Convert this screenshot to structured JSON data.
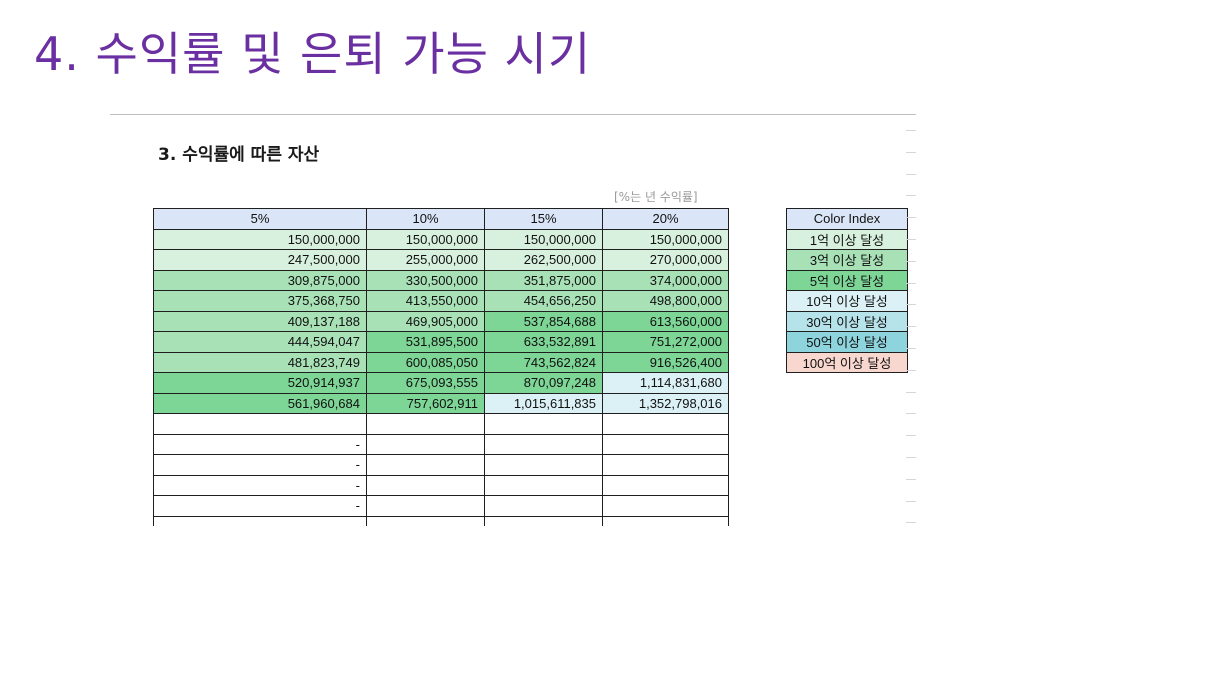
{
  "slide": {
    "title": "4. 수익률 및 은퇴 가능 시기"
  },
  "section": {
    "heading": "3. 수익률에 따른 자산",
    "rate_note": "[%는 년 수익률]"
  },
  "colors": {
    "title": "#6a2fa0",
    "header_fill": "#dae6f7",
    "tier_1": "#d8f1de",
    "tier_3": "#a9e1b7",
    "tier_5": "#7dd596",
    "tier_10": "#dcf1f5",
    "tier_30": "#b6e3ea",
    "tier_50": "#8ed4dd",
    "tier_100": "#f8d7cf"
  },
  "asset_table": {
    "columns": [
      "5%",
      "10%",
      "15%",
      "20%"
    ],
    "rows": [
      [
        "150,000,000",
        "150,000,000",
        "150,000,000",
        "150,000,000"
      ],
      [
        "247,500,000",
        "255,000,000",
        "262,500,000",
        "270,000,000"
      ],
      [
        "309,875,000",
        "330,500,000",
        "351,875,000",
        "374,000,000"
      ],
      [
        "375,368,750",
        "413,550,000",
        "454,656,250",
        "498,800,000"
      ],
      [
        "409,137,188",
        "469,905,000",
        "537,854,688",
        "613,560,000"
      ],
      [
        "444,594,047",
        "531,895,500",
        "633,532,891",
        "751,272,000"
      ],
      [
        "481,823,749",
        "600,085,050",
        "743,562,824",
        "916,526,400"
      ],
      [
        "520,914,937",
        "675,093,555",
        "870,097,248",
        "1,114,831,680"
      ],
      [
        "561,960,684",
        "757,602,911",
        "1,015,611,835",
        "1,352,798,016"
      ]
    ],
    "row_tiers": [
      [
        "tier_1",
        "tier_1",
        "tier_1",
        "tier_1"
      ],
      [
        "tier_1",
        "tier_1",
        "tier_1",
        "tier_1"
      ],
      [
        "tier_3",
        "tier_3",
        "tier_3",
        "tier_3"
      ],
      [
        "tier_3",
        "tier_3",
        "tier_3",
        "tier_3"
      ],
      [
        "tier_3",
        "tier_3",
        "tier_5",
        "tier_5"
      ],
      [
        "tier_3",
        "tier_5",
        "tier_5",
        "tier_5"
      ],
      [
        "tier_3",
        "tier_5",
        "tier_5",
        "tier_5"
      ],
      [
        "tier_5",
        "tier_5",
        "tier_5",
        "tier_10"
      ],
      [
        "tier_5",
        "tier_5",
        "tier_10",
        "tier_10"
      ]
    ],
    "empty_rows": [
      [
        "",
        "",
        "",
        ""
      ],
      [
        "-",
        "",
        "",
        ""
      ],
      [
        "-",
        "",
        "",
        ""
      ],
      [
        "-",
        "",
        "",
        ""
      ],
      [
        "-",
        "",
        "",
        ""
      ]
    ]
  },
  "color_index": {
    "header": "Color Index",
    "items": [
      {
        "label": "1억 이상 달성",
        "tier": "tier_1"
      },
      {
        "label": "3억 이상 달성",
        "tier": "tier_3"
      },
      {
        "label": "5억 이상 달성",
        "tier": "tier_5"
      },
      {
        "label": "10억 이상 달성",
        "tier": "tier_10"
      },
      {
        "label": "30억 이상 달성",
        "tier": "tier_30"
      },
      {
        "label": "50억 이상 달성",
        "tier": "tier_50"
      },
      {
        "label": "100억 이상 달성",
        "tier": "tier_100"
      }
    ]
  }
}
